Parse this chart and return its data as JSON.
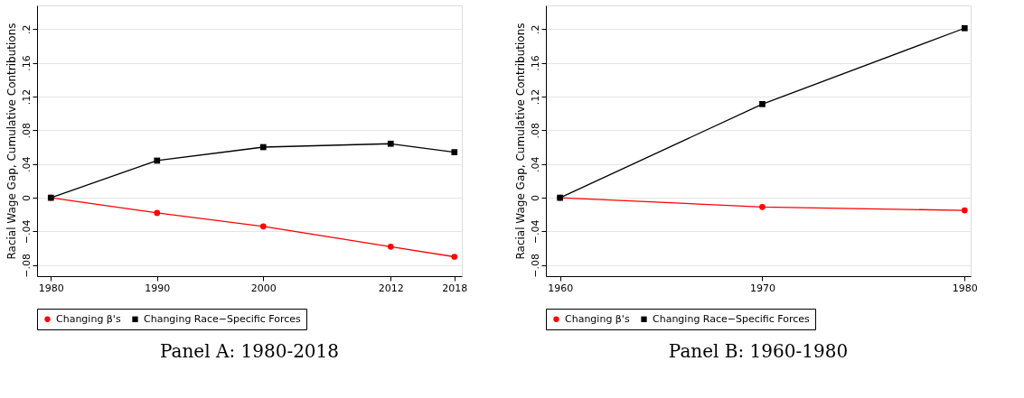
{
  "chart_data": [
    {
      "type": "line",
      "title": "Panel A: 1980-2018",
      "ylabel": "Racial Wage Gap, Cumulative Contributions",
      "x": [
        1980,
        1990,
        2000,
        2012,
        2018
      ],
      "series": [
        {
          "name": "Changing β's",
          "color": "#ff0000",
          "marker": "circle",
          "values": [
            0,
            -0.018,
            -0.034,
            -0.058,
            -0.07
          ]
        },
        {
          "name": "Changing Race−Specific Forces",
          "color": "#000000",
          "marker": "square",
          "values": [
            0,
            0.044,
            0.06,
            0.064,
            0.054
          ]
        }
      ],
      "xlim": [
        1978.7,
        2018.7
      ],
      "xticks": [
        1980,
        1990,
        2000,
        2012,
        2018
      ],
      "line_style": "solid",
      "ylim": [
        -0.093,
        0.228
      ],
      "yticks": [
        {
          "value": -0.08,
          "label": "−.08"
        },
        {
          "value": -0.04,
          "label": "−.04"
        },
        {
          "value": 0,
          "label": "0"
        },
        {
          "value": 0.04,
          "label": ".04"
        },
        {
          "value": 0.08,
          "label": ".08"
        },
        {
          "value": 0.12,
          "label": ".12"
        },
        {
          "value": 0.16,
          "label": ".16"
        },
        {
          "value": 0.2,
          "label": ".2"
        }
      ],
      "grid": "y",
      "legend": "bottom"
    },
    {
      "type": "line",
      "title": "Panel B: 1960-1980",
      "ylabel": "Racial Wage Gap, Cumulative Contributions",
      "x": [
        1960,
        1970,
        1980
      ],
      "series": [
        {
          "name": "Changing β's",
          "color": "#ff0000",
          "marker": "circle",
          "values": [
            0,
            -0.011,
            -0.015
          ]
        },
        {
          "name": "Changing Race−Specific Forces",
          "color": "#000000",
          "marker": "square",
          "values": [
            0,
            0.111,
            0.201
          ]
        }
      ],
      "xlim": [
        1959.3,
        1980.3
      ],
      "xticks": [
        1960,
        1970,
        1980
      ],
      "line_style": "solid",
      "ylim": [
        -0.093,
        0.228
      ],
      "yticks": [
        {
          "value": -0.08,
          "label": "−.08"
        },
        {
          "value": -0.04,
          "label": "−.04"
        },
        {
          "value": 0,
          "label": "0"
        },
        {
          "value": 0.04,
          "label": ".04"
        },
        {
          "value": 0.08,
          "label": ".08"
        },
        {
          "value": 0.12,
          "label": ".12"
        },
        {
          "value": 0.16,
          "label": ".16"
        },
        {
          "value": 0.2,
          "label": ".2"
        }
      ],
      "grid": "y",
      "legend": "bottom"
    }
  ]
}
